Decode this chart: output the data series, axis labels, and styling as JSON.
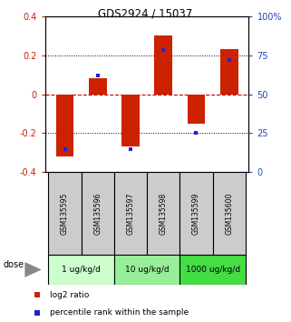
{
  "title": "GDS2924 / 15037",
  "samples": [
    "GSM135595",
    "GSM135596",
    "GSM135597",
    "GSM135598",
    "GSM135599",
    "GSM135600"
  ],
  "log2_ratios": [
    -0.32,
    0.08,
    -0.27,
    0.3,
    -0.15,
    0.23
  ],
  "percentile_ranks": [
    15,
    62,
    15,
    78,
    25,
    72
  ],
  "dose_groups": [
    {
      "label": "1 ug/kg/d",
      "samples": [
        0,
        1
      ],
      "color": "#ccffcc"
    },
    {
      "label": "10 ug/kg/d",
      "samples": [
        2,
        3
      ],
      "color": "#99ee99"
    },
    {
      "label": "1000 ug/kg/d",
      "samples": [
        4,
        5
      ],
      "color": "#44dd44"
    }
  ],
  "ylim_left": [
    -0.4,
    0.4
  ],
  "ylim_right": [
    0,
    100
  ],
  "bar_color": "#cc2200",
  "dot_color": "#2222cc",
  "zero_line_color": "#cc0000",
  "bg_plot": "#ffffff",
  "bg_sample": "#cccccc",
  "legend_red_label": "log2 ratio",
  "legend_blue_label": "percentile rank within the sample",
  "left_yticks": [
    -0.4,
    -0.2,
    0,
    0.2,
    0.4
  ],
  "right_yticks": [
    0,
    25,
    50,
    75,
    100
  ],
  "right_yticklabels": [
    "0",
    "25",
    "50",
    "75",
    "100%"
  ]
}
